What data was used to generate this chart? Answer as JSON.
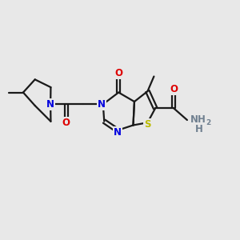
{
  "bg_color": "#e8e8e8",
  "bond_color": "#1a1a1a",
  "bond_width": 1.6,
  "atom_colors": {
    "N": "#0000dd",
    "O": "#dd0000",
    "S": "#bbbb00",
    "H": "#708090"
  },
  "font_size": 8.5,
  "fig_size": [
    3.0,
    3.0
  ],
  "dpi": 100
}
